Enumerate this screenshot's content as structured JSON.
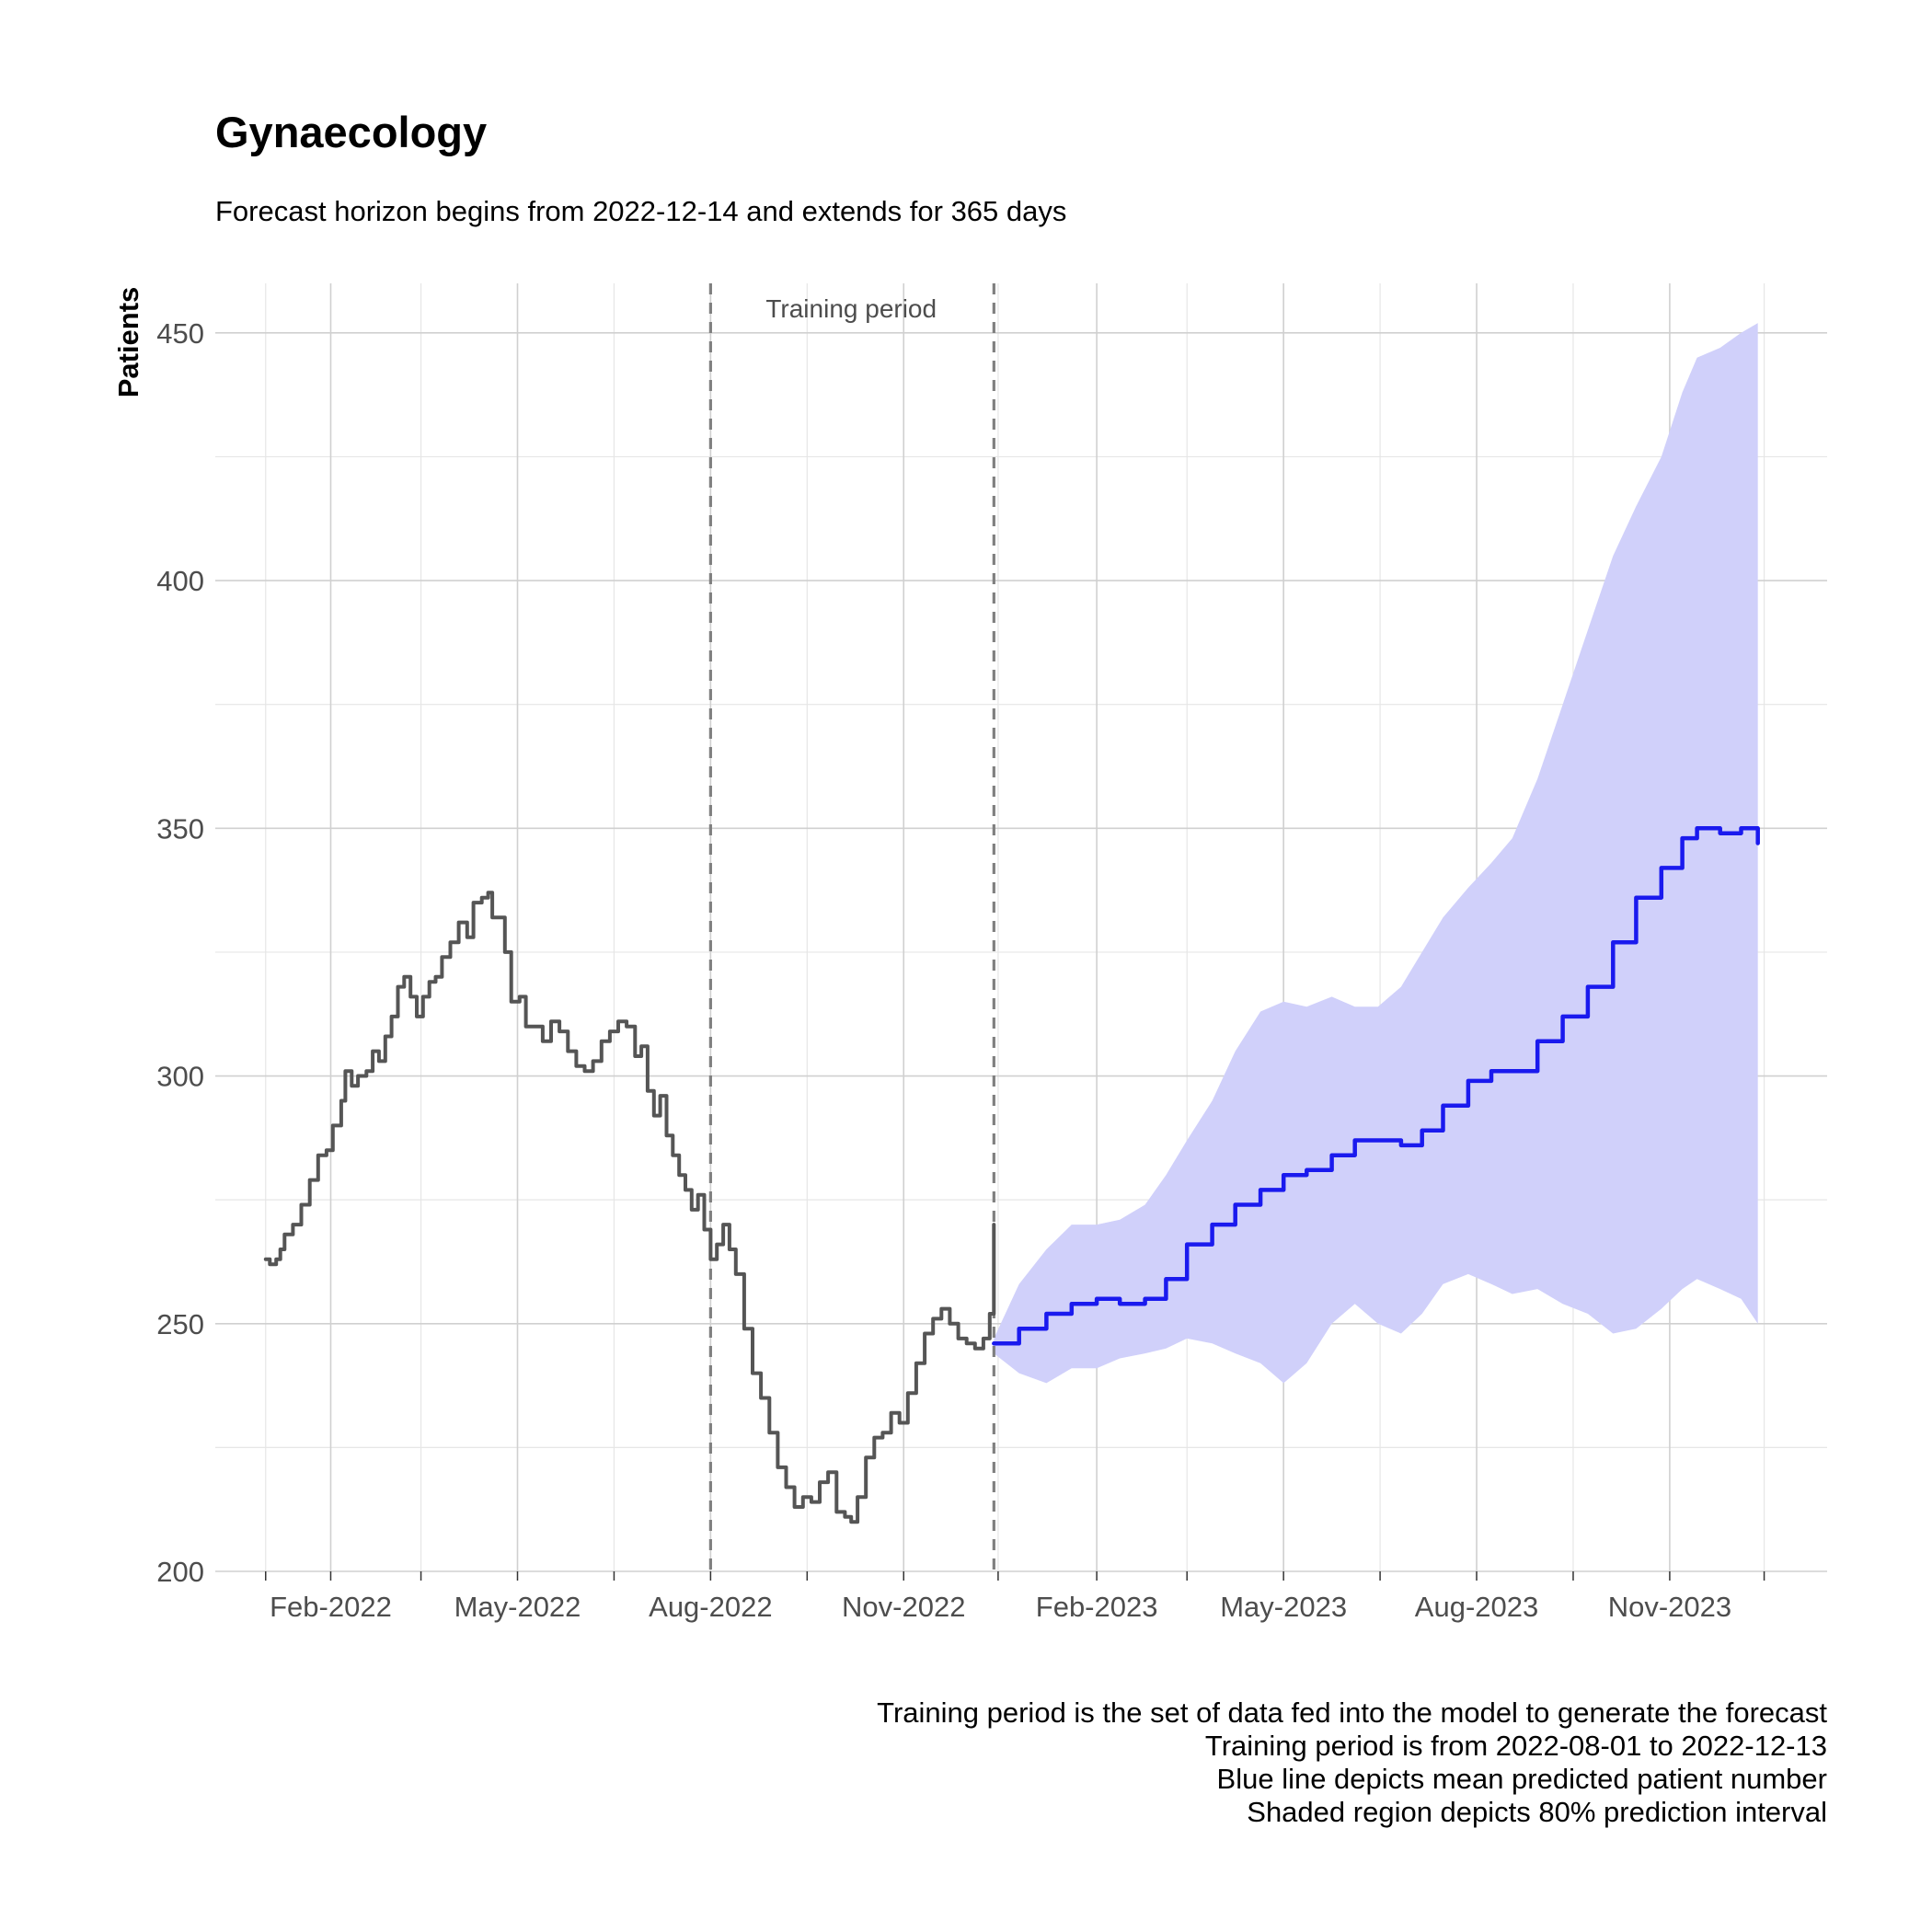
{
  "chart_data": {
    "type": "line",
    "title": "Gynaecology",
    "subtitle": "Forecast horizon begins from 2022-12-14 and extends for 365 days",
    "xlabel": "",
    "ylabel": "Patients",
    "xlim": [
      "2021-12-08",
      "2024-01-15"
    ],
    "ylim": [
      200,
      460
    ],
    "x_ticks": [
      {
        "date": "2022-02-01",
        "label": "Feb-2022"
      },
      {
        "date": "2022-05-01",
        "label": "May-2022"
      },
      {
        "date": "2022-08-01",
        "label": "Aug-2022"
      },
      {
        "date": "2022-11-01",
        "label": "Nov-2022"
      },
      {
        "date": "2023-02-01",
        "label": "Feb-2023"
      },
      {
        "date": "2023-05-01",
        "label": "May-2023"
      },
      {
        "date": "2023-08-01",
        "label": "Aug-2023"
      },
      {
        "date": "2023-11-01",
        "label": "Nov-2023"
      }
    ],
    "x_minor_ticks": [
      "2022-01-01",
      "2022-03-16",
      "2022-06-16",
      "2022-09-16",
      "2022-12-16",
      "2023-03-16",
      "2023-06-16",
      "2023-09-16",
      "2023-12-16"
    ],
    "y_ticks": [
      200,
      250,
      300,
      350,
      400,
      450
    ],
    "y_minor_ticks": [
      225,
      275,
      325,
      375,
      425
    ],
    "grid": true,
    "legend": "none",
    "annotations": [
      {
        "type": "vline",
        "date": "2022-08-01",
        "style": "dashed",
        "color": "#808080"
      },
      {
        "type": "vline",
        "date": "2022-12-14",
        "style": "dashed",
        "color": "#808080"
      },
      {
        "type": "text",
        "date": "2022-10-07",
        "y": 455,
        "text": "Training period",
        "color": "#4d4d4d"
      }
    ],
    "series": [
      {
        "role": "observed",
        "color": "#555555",
        "points": [
          [
            "2022-01-01",
            263
          ],
          [
            "2022-01-03",
            262
          ],
          [
            "2022-01-06",
            263
          ],
          [
            "2022-01-08",
            265
          ],
          [
            "2022-01-10",
            268
          ],
          [
            "2022-01-14",
            270
          ],
          [
            "2022-01-18",
            274
          ],
          [
            "2022-01-22",
            279
          ],
          [
            "2022-01-26",
            284
          ],
          [
            "2022-01-30",
            285
          ],
          [
            "2022-02-02",
            290
          ],
          [
            "2022-02-06",
            295
          ],
          [
            "2022-02-08",
            301
          ],
          [
            "2022-02-11",
            298
          ],
          [
            "2022-02-14",
            300
          ],
          [
            "2022-02-18",
            301
          ],
          [
            "2022-02-21",
            305
          ],
          [
            "2022-02-24",
            303
          ],
          [
            "2022-02-27",
            308
          ],
          [
            "2022-03-02",
            312
          ],
          [
            "2022-03-05",
            318
          ],
          [
            "2022-03-08",
            320
          ],
          [
            "2022-03-11",
            316
          ],
          [
            "2022-03-14",
            312
          ],
          [
            "2022-03-17",
            316
          ],
          [
            "2022-03-20",
            319
          ],
          [
            "2022-03-23",
            320
          ],
          [
            "2022-03-26",
            324
          ],
          [
            "2022-03-30",
            327
          ],
          [
            "2022-04-03",
            331
          ],
          [
            "2022-04-07",
            328
          ],
          [
            "2022-04-10",
            335
          ],
          [
            "2022-04-14",
            336
          ],
          [
            "2022-04-17",
            337
          ],
          [
            "2022-04-19",
            332
          ],
          [
            "2022-04-22",
            332
          ],
          [
            "2022-04-25",
            325
          ],
          [
            "2022-04-28",
            315
          ],
          [
            "2022-05-02",
            316
          ],
          [
            "2022-05-05",
            310
          ],
          [
            "2022-05-09",
            310
          ],
          [
            "2022-05-13",
            307
          ],
          [
            "2022-05-17",
            311
          ],
          [
            "2022-05-21",
            309
          ],
          [
            "2022-05-25",
            305
          ],
          [
            "2022-05-29",
            302
          ],
          [
            "2022-06-02",
            301
          ],
          [
            "2022-06-06",
            303
          ],
          [
            "2022-06-10",
            307
          ],
          [
            "2022-06-14",
            309
          ],
          [
            "2022-06-18",
            311
          ],
          [
            "2022-06-22",
            310
          ],
          [
            "2022-06-26",
            304
          ],
          [
            "2022-06-29",
            306
          ],
          [
            "2022-07-02",
            297
          ],
          [
            "2022-07-05",
            292
          ],
          [
            "2022-07-08",
            296
          ],
          [
            "2022-07-11",
            288
          ],
          [
            "2022-07-14",
            284
          ],
          [
            "2022-07-17",
            280
          ],
          [
            "2022-07-20",
            277
          ],
          [
            "2022-07-23",
            273
          ],
          [
            "2022-07-26",
            276
          ],
          [
            "2022-07-29",
            269
          ],
          [
            "2022-08-01",
            263
          ],
          [
            "2022-08-04",
            266
          ],
          [
            "2022-08-07",
            270
          ],
          [
            "2022-08-10",
            265
          ],
          [
            "2022-08-13",
            260
          ],
          [
            "2022-08-17",
            249
          ],
          [
            "2022-08-21",
            240
          ],
          [
            "2022-08-25",
            235
          ],
          [
            "2022-08-29",
            228
          ],
          [
            "2022-09-02",
            221
          ],
          [
            "2022-09-06",
            217
          ],
          [
            "2022-09-10",
            213
          ],
          [
            "2022-09-14",
            215
          ],
          [
            "2022-09-18",
            214
          ],
          [
            "2022-09-22",
            218
          ],
          [
            "2022-09-26",
            220
          ],
          [
            "2022-09-30",
            212
          ],
          [
            "2022-10-04",
            211
          ],
          [
            "2022-10-07",
            210
          ],
          [
            "2022-10-10",
            215
          ],
          [
            "2022-10-14",
            223
          ],
          [
            "2022-10-18",
            227
          ],
          [
            "2022-10-22",
            228
          ],
          [
            "2022-10-26",
            232
          ],
          [
            "2022-10-30",
            230
          ],
          [
            "2022-11-03",
            236
          ],
          [
            "2022-11-07",
            242
          ],
          [
            "2022-11-11",
            248
          ],
          [
            "2022-11-15",
            251
          ],
          [
            "2022-11-19",
            253
          ],
          [
            "2022-11-23",
            250
          ],
          [
            "2022-11-27",
            247
          ],
          [
            "2022-12-01",
            246
          ],
          [
            "2022-12-05",
            245
          ],
          [
            "2022-12-09",
            247
          ],
          [
            "2022-12-12",
            252
          ],
          [
            "2022-12-14",
            270
          ]
        ]
      },
      {
        "role": "mean forecast",
        "color": "#1a1aee",
        "points": [
          [
            "2022-12-14",
            246
          ],
          [
            "2022-12-26",
            249
          ],
          [
            "2023-01-08",
            252
          ],
          [
            "2023-01-20",
            254
          ],
          [
            "2023-02-01",
            255
          ],
          [
            "2023-02-12",
            254
          ],
          [
            "2023-02-24",
            255
          ],
          [
            "2023-03-06",
            259
          ],
          [
            "2023-03-16",
            266
          ],
          [
            "2023-03-28",
            270
          ],
          [
            "2023-04-08",
            274
          ],
          [
            "2023-04-20",
            277
          ],
          [
            "2023-05-01",
            280
          ],
          [
            "2023-05-12",
            281
          ],
          [
            "2023-05-24",
            284
          ],
          [
            "2023-06-04",
            287
          ],
          [
            "2023-06-15",
            287
          ],
          [
            "2023-06-26",
            286
          ],
          [
            "2023-07-06",
            289
          ],
          [
            "2023-07-16",
            294
          ],
          [
            "2023-07-28",
            299
          ],
          [
            "2023-08-08",
            301
          ],
          [
            "2023-08-18",
            301
          ],
          [
            "2023-08-30",
            307
          ],
          [
            "2023-09-11",
            312
          ],
          [
            "2023-09-23",
            318
          ],
          [
            "2023-10-05",
            327
          ],
          [
            "2023-10-16",
            336
          ],
          [
            "2023-10-28",
            342
          ],
          [
            "2023-11-07",
            348
          ],
          [
            "2023-11-14",
            350
          ],
          [
            "2023-11-25",
            349
          ],
          [
            "2023-12-05",
            350
          ],
          [
            "2023-12-13",
            347
          ]
        ]
      }
    ],
    "interval": {
      "label": "80% prediction interval",
      "color": "#d0d0fa",
      "points": [
        [
          "2022-12-14",
          244,
          247
        ],
        [
          "2022-12-26",
          240,
          258
        ],
        [
          "2023-01-08",
          238,
          265
        ],
        [
          "2023-01-20",
          241,
          270
        ],
        [
          "2023-02-01",
          241,
          270
        ],
        [
          "2023-02-12",
          243,
          271
        ],
        [
          "2023-02-24",
          244,
          274
        ],
        [
          "2023-03-06",
          245,
          280
        ],
        [
          "2023-03-16",
          247,
          287
        ],
        [
          "2023-03-28",
          246,
          295
        ],
        [
          "2023-04-08",
          244,
          305
        ],
        [
          "2023-04-20",
          242,
          313
        ],
        [
          "2023-05-01",
          238,
          315
        ],
        [
          "2023-05-12",
          242,
          314
        ],
        [
          "2023-05-24",
          250,
          316
        ],
        [
          "2023-06-04",
          254,
          314
        ],
        [
          "2023-06-15",
          250,
          314
        ],
        [
          "2023-06-26",
          248,
          318
        ],
        [
          "2023-07-06",
          252,
          325
        ],
        [
          "2023-07-16",
          258,
          332
        ],
        [
          "2023-07-28",
          260,
          338
        ],
        [
          "2023-08-08",
          258,
          343
        ],
        [
          "2023-08-18",
          256,
          348
        ],
        [
          "2023-08-30",
          257,
          360
        ],
        [
          "2023-09-11",
          254,
          375
        ],
        [
          "2023-09-23",
          252,
          390
        ],
        [
          "2023-10-05",
          248,
          405
        ],
        [
          "2023-10-16",
          249,
          415
        ],
        [
          "2023-10-28",
          253,
          425
        ],
        [
          "2023-11-07",
          257,
          438
        ],
        [
          "2023-11-14",
          259,
          445
        ],
        [
          "2023-11-25",
          257,
          447
        ],
        [
          "2023-12-05",
          255,
          450
        ],
        [
          "2023-12-13",
          250,
          452
        ]
      ]
    },
    "caption": [
      "Training period is the set of data fed into the model to generate the forecast",
      "Training period is from 2022-08-01 to 2022-12-13",
      "Blue line depicts mean predicted patient number",
      "Shaded region depicts 80% prediction interval"
    ]
  }
}
